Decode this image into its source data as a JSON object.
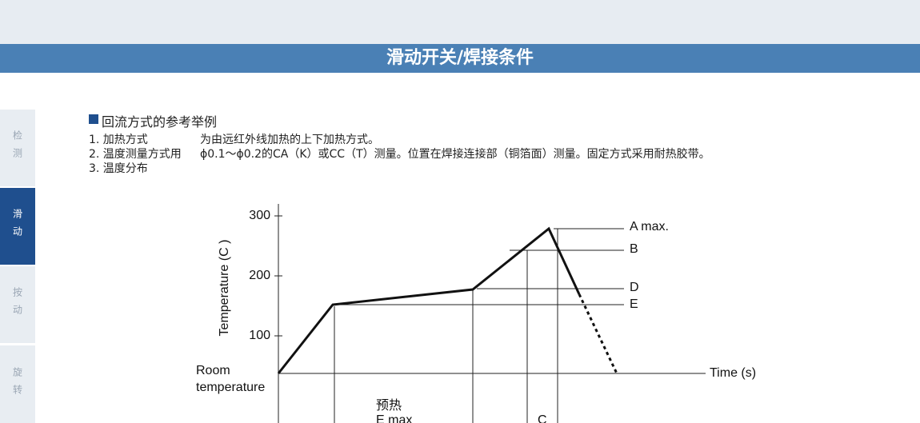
{
  "header": {
    "title": "滑动开关/焊接条件"
  },
  "sidebar": {
    "tabs": [
      "检测",
      "滑动",
      "按动",
      "旋转"
    ]
  },
  "section": {
    "heading": "回流方式的参考举例",
    "items": [
      {
        "label": "1. 加热方式",
        "text": "为由远红外线加热的上下加热方式。"
      },
      {
        "label": "2. 温度测量方式用",
        "text": "ϕ0.1～ϕ0.2的CA（K）或CC（T）测量。位置在焊接连接部（铜箔面）测量。固定方式采用耐热胶带。"
      },
      {
        "label": "3. 温度分布"
      }
    ]
  },
  "diagram": {
    "y_axis_label": "Temperature (C )",
    "y_ticks": [
      300,
      200,
      100
    ],
    "x_axis_label": "Time (s)",
    "room_label": [
      "Room",
      "temperature"
    ],
    "line_labels": [
      "A max.",
      "B",
      "D",
      "E"
    ],
    "region_labels": [
      "预热",
      "E max",
      "C"
    ]
  }
}
